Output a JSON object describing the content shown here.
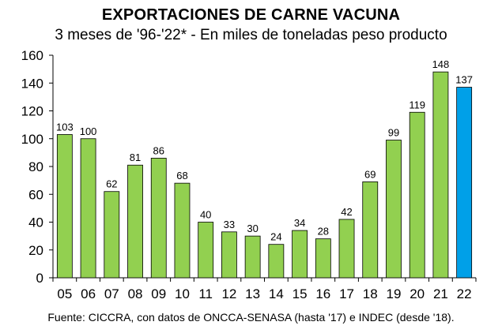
{
  "chart_data": {
    "type": "bar",
    "title": "EXPORTACIONES DE CARNE VACUNA",
    "subtitle": "3 meses de '96-'22* - En miles de toneladas peso producto",
    "categories": [
      "05",
      "06",
      "07",
      "08",
      "09",
      "10",
      "11",
      "12",
      "13",
      "14",
      "15",
      "16",
      "17",
      "18",
      "19",
      "20",
      "21",
      "22"
    ],
    "values": [
      103,
      100,
      62,
      81,
      86,
      68,
      40,
      33,
      30,
      24,
      34,
      28,
      42,
      69,
      99,
      119,
      148,
      137
    ],
    "ylim": [
      0,
      160
    ],
    "yticks": [
      0,
      20,
      40,
      60,
      80,
      100,
      120,
      140,
      160
    ],
    "xlabel": "",
    "ylabel": "",
    "grid": false,
    "colors": {
      "default": "#92D050",
      "highlight": "#00A0E8",
      "border": "#000000"
    },
    "highlight_category": "22",
    "source": "Fuente: CICCRA, con datos de ONCCA-SENASA (hasta '17) e INDEC (desde '18)."
  }
}
